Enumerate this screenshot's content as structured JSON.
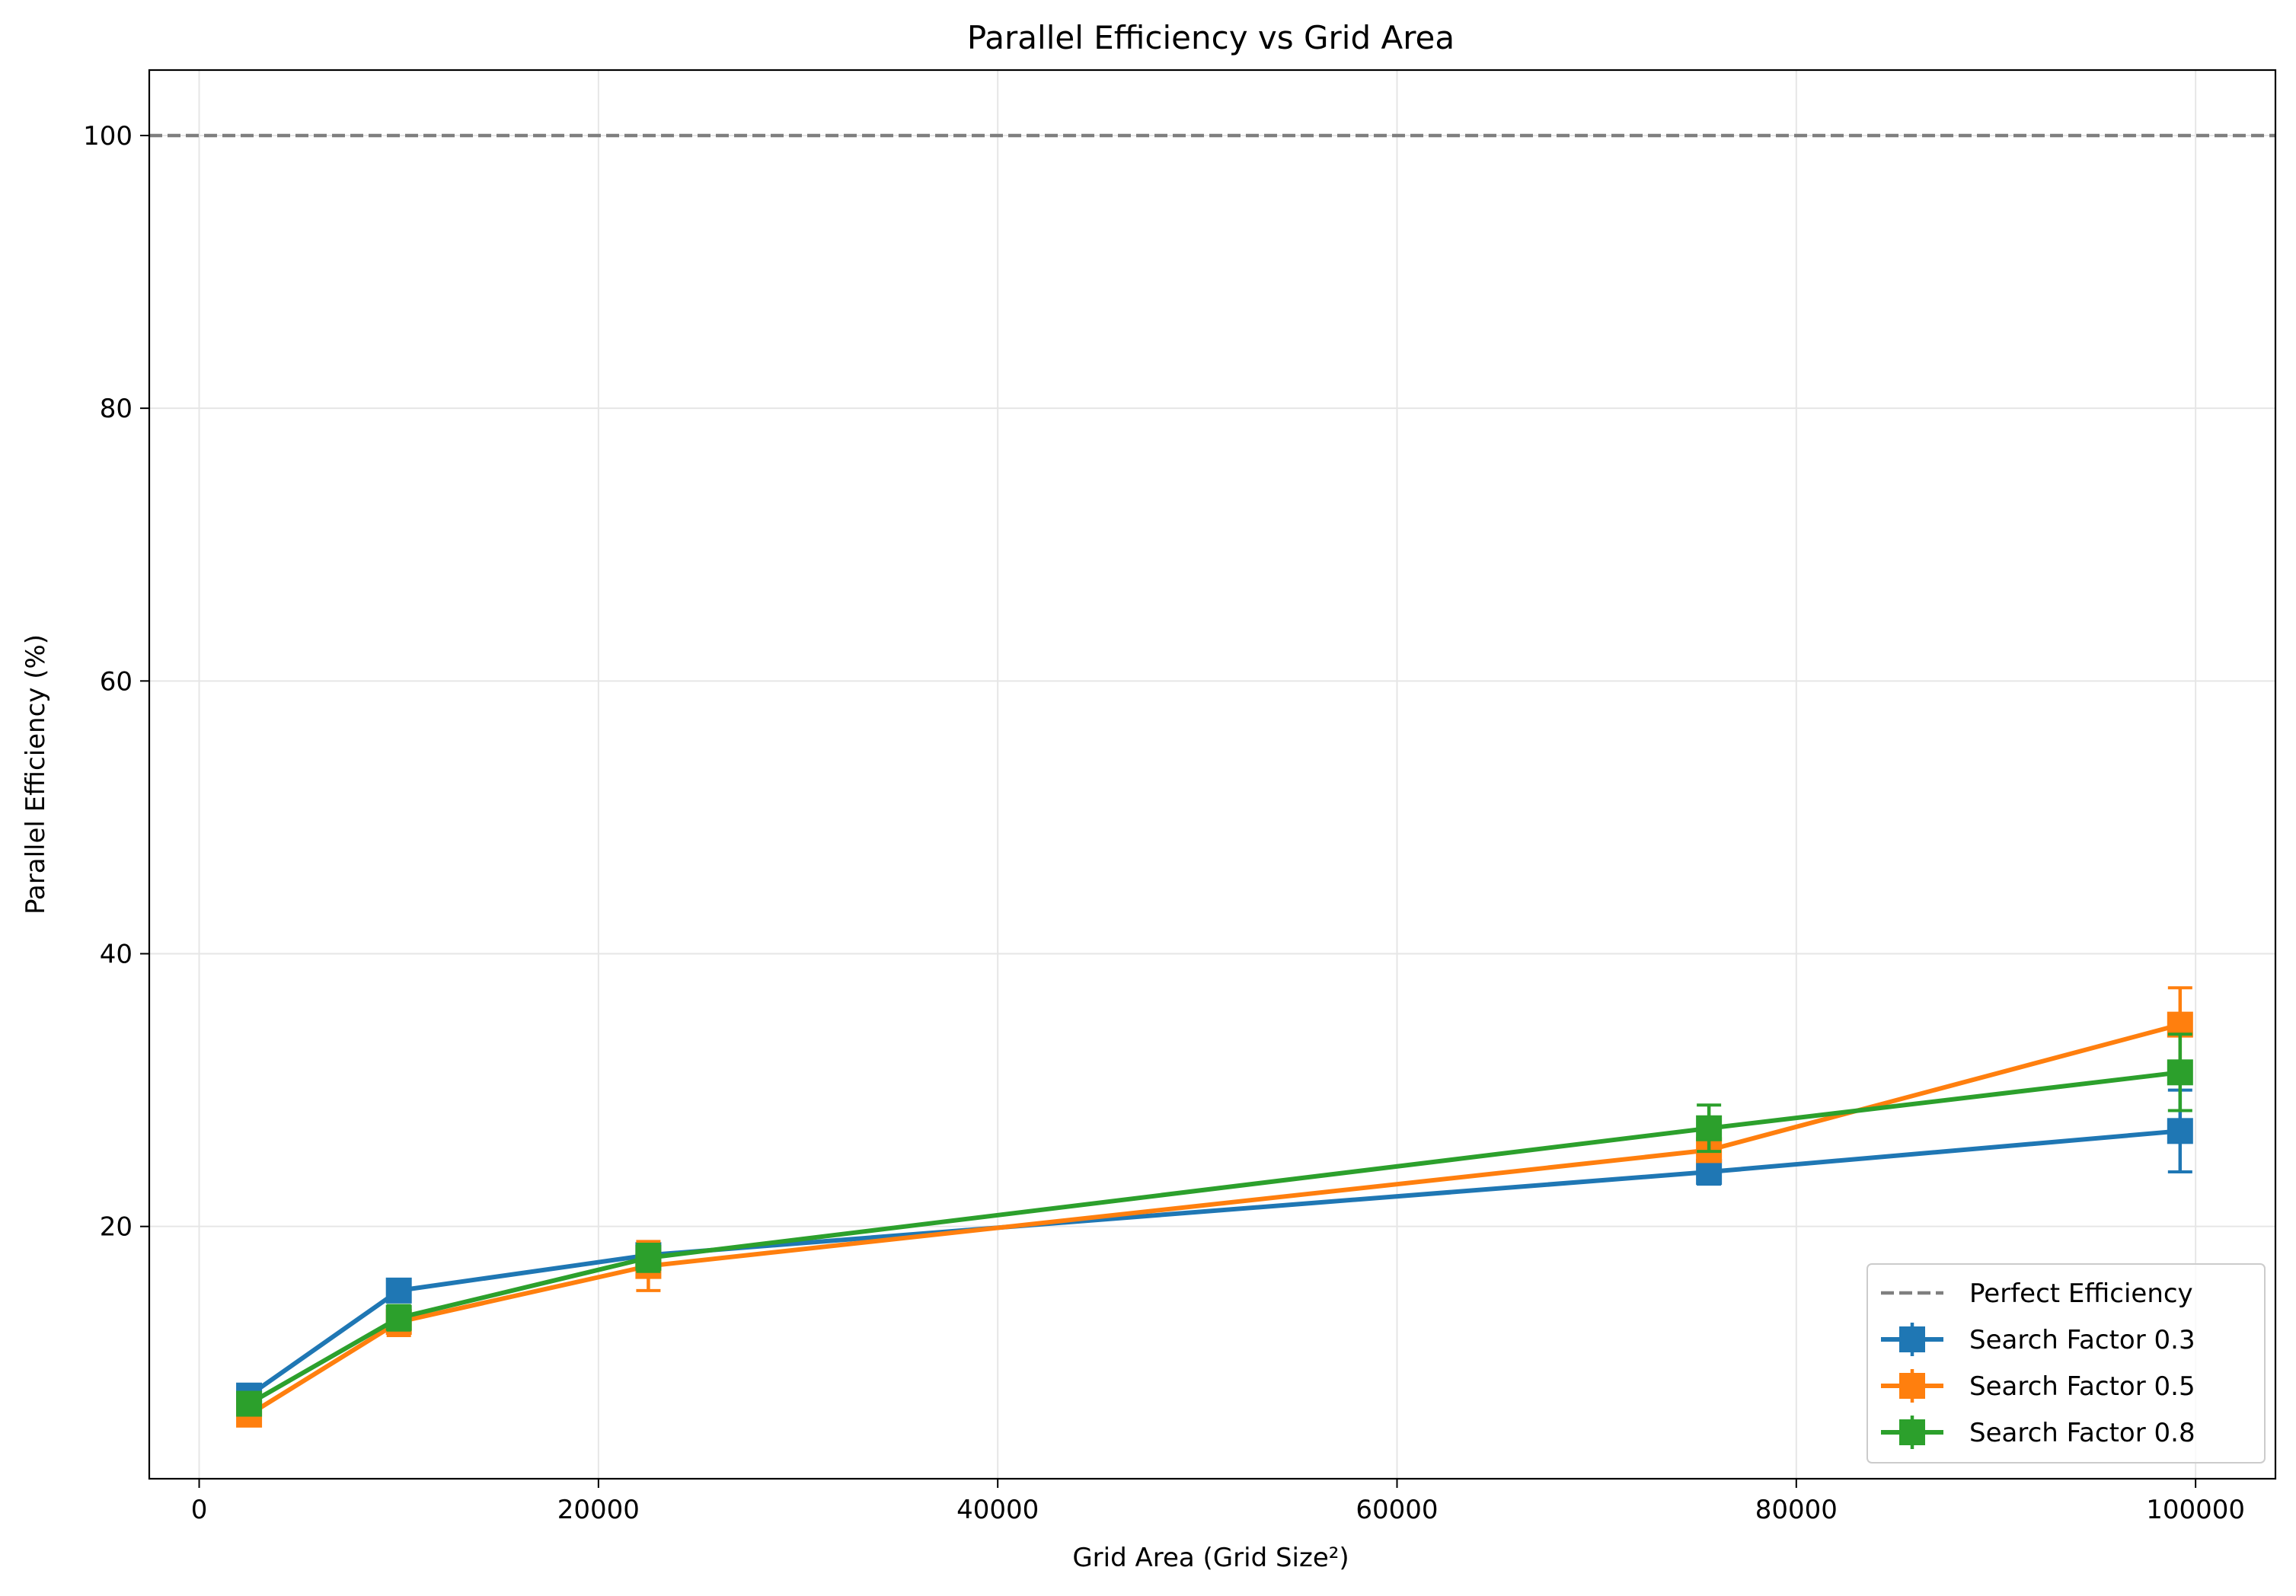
{
  "chart_data": {
    "type": "line",
    "title": "Parallel Efficiency vs Grid Area",
    "xlabel": "Grid Area (Grid Size²)",
    "ylabel": "Parallel Efficiency (%)",
    "xlim": [
      -2500,
      104000
    ],
    "ylim": [
      1.5,
      104.8
    ],
    "xticks": [
      0,
      20000,
      40000,
      60000,
      80000,
      100000
    ],
    "yticks": [
      20,
      40,
      60,
      80,
      100
    ],
    "grid": true,
    "legend_position": "lower-right",
    "reference_line": {
      "name": "Perfect Efficiency",
      "y": 100,
      "color": "#7f7f7f",
      "style": "dashed"
    },
    "x": [
      2500,
      10000,
      22500,
      75625,
      99225
    ],
    "series": [
      {
        "name": "Search Factor 0.3",
        "color": "#1f77b4",
        "values": [
          7.6,
          15.3,
          17.9,
          24.0,
          27.0
        ],
        "errors": [
          0.5,
          0.6,
          0.8,
          0.9,
          3.0
        ]
      },
      {
        "name": "Search Factor 0.5",
        "color": "#ff7f0e",
        "values": [
          6.2,
          13.0,
          17.1,
          25.6,
          34.8
        ],
        "errors": [
          0.4,
          1.0,
          1.8,
          0.8,
          2.7
        ]
      },
      {
        "name": "Search Factor 0.8",
        "color": "#2ca02c",
        "values": [
          7.0,
          13.3,
          17.7,
          27.2,
          31.3
        ],
        "errors": [
          0.3,
          0.9,
          1.0,
          1.7,
          2.8
        ]
      }
    ]
  }
}
